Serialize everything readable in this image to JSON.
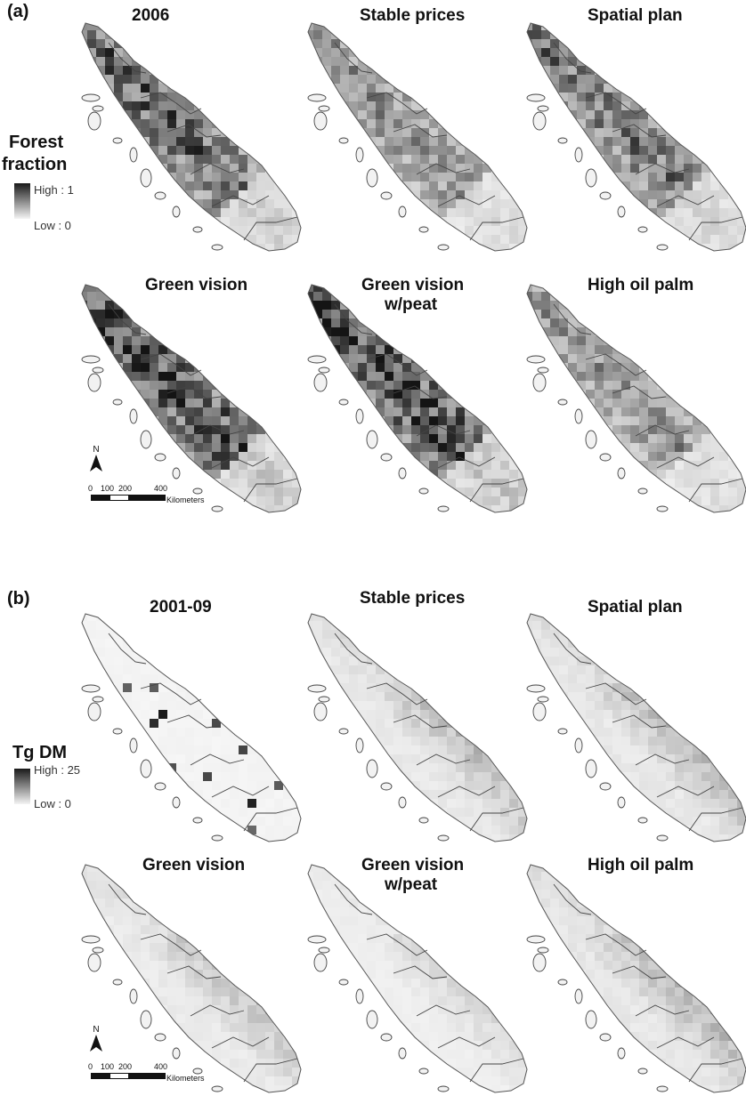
{
  "panels": [
    {
      "label": "(a)",
      "legend": {
        "title_line1": "Forest",
        "title_line2": "fraction",
        "high": "High : 1",
        "low": "Low : 0"
      },
      "maps": [
        {
          "title": "2006",
          "title2": "",
          "darkness": 0.65,
          "pattern": "forest-2006"
        },
        {
          "title": "Stable prices",
          "title2": "",
          "darkness": 0.45,
          "pattern": "forest"
        },
        {
          "title": "Spatial plan",
          "title2": "",
          "darkness": 0.55,
          "pattern": "forest"
        },
        {
          "title": "Green vision",
          "title2": "",
          "darkness": 0.75,
          "pattern": "forest"
        },
        {
          "title": "Green vision",
          "title2": "w/peat",
          "darkness": 0.8,
          "pattern": "forest"
        },
        {
          "title": "High oil palm",
          "title2": "",
          "darkness": 0.42,
          "pattern": "forest"
        }
      ]
    },
    {
      "label": "(b)",
      "legend": {
        "title_line1": "Tg DM",
        "title_line2": "",
        "high": "High : 25",
        "low": "Low : 0"
      },
      "maps": [
        {
          "title": "2001-09",
          "title2": "",
          "darkness": 0.08,
          "pattern": "emission-obs"
        },
        {
          "title": "Stable prices",
          "title2": "",
          "darkness": 0.35,
          "pattern": "emission"
        },
        {
          "title": "Spatial plan",
          "title2": "",
          "darkness": 0.35,
          "pattern": "emission"
        },
        {
          "title": "Green vision",
          "title2": "",
          "darkness": 0.3,
          "pattern": "emission"
        },
        {
          "title": "Green vision",
          "title2": "w/peat",
          "darkness": 0.18,
          "pattern": "emission"
        },
        {
          "title": "High oil palm",
          "title2": "",
          "darkness": 0.38,
          "pattern": "emission"
        }
      ]
    }
  ],
  "north_arrow": {
    "label": "N"
  },
  "scale": {
    "t0": "0",
    "t1": "100",
    "t2": "200",
    "t3": "400",
    "unit": "Kilometers"
  }
}
